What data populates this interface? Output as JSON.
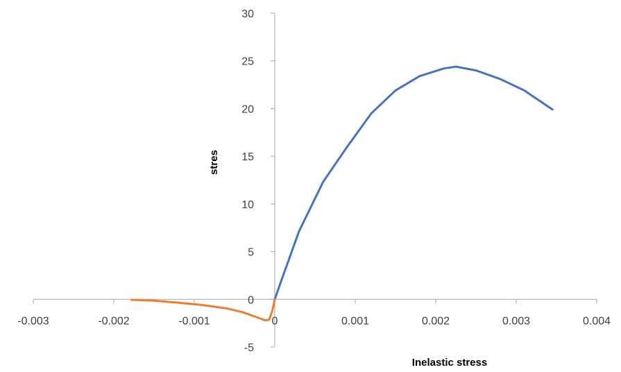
{
  "chart_data": {
    "type": "line",
    "title": "",
    "xlabel": "Inelastic stress",
    "ylabel": "stres",
    "xlim": [
      -0.003,
      0.004
    ],
    "ylim": [
      -5,
      30
    ],
    "xticks": [
      -0.003,
      -0.002,
      -0.001,
      0,
      0.001,
      0.002,
      0.003,
      0.004
    ],
    "xtick_labels": [
      "-0.003",
      "-0.002",
      "-0.001",
      "0",
      "0.001",
      "0.002",
      "0.003",
      "0.004"
    ],
    "yticks": [
      -5,
      0,
      5,
      10,
      15,
      20,
      25,
      30
    ],
    "ytick_labels": [
      "-5",
      "0",
      "5",
      "10",
      "15",
      "20",
      "25",
      "30"
    ],
    "grid": false,
    "legend": "none",
    "series": [
      {
        "color": "#4472C4",
        "points": [
          [
            0,
            0
          ],
          [
            0.0001,
            2.4
          ],
          [
            0.0003,
            7.1
          ],
          [
            0.0006,
            12.3
          ],
          [
            0.0009,
            16.0
          ],
          [
            0.0012,
            19.5
          ],
          [
            0.0015,
            21.9
          ],
          [
            0.0018,
            23.4
          ],
          [
            0.0021,
            24.2
          ],
          [
            0.00225,
            24.4
          ],
          [
            0.0025,
            24.0
          ],
          [
            0.0028,
            23.1
          ],
          [
            0.0031,
            21.9
          ],
          [
            0.00345,
            19.9
          ]
        ]
      },
      {
        "color": "#ED7D31",
        "points": [
          [
            -0.00178,
            -0.05
          ],
          [
            -0.0015,
            -0.15
          ],
          [
            -0.0012,
            -0.35
          ],
          [
            -0.0009,
            -0.6
          ],
          [
            -0.0006,
            -0.95
          ],
          [
            -0.0004,
            -1.35
          ],
          [
            -0.00025,
            -1.8
          ],
          [
            -0.00012,
            -2.2
          ],
          [
            -7e-05,
            -2.15
          ],
          [
            -3e-05,
            -1.2
          ],
          [
            0,
            0
          ]
        ]
      }
    ]
  }
}
